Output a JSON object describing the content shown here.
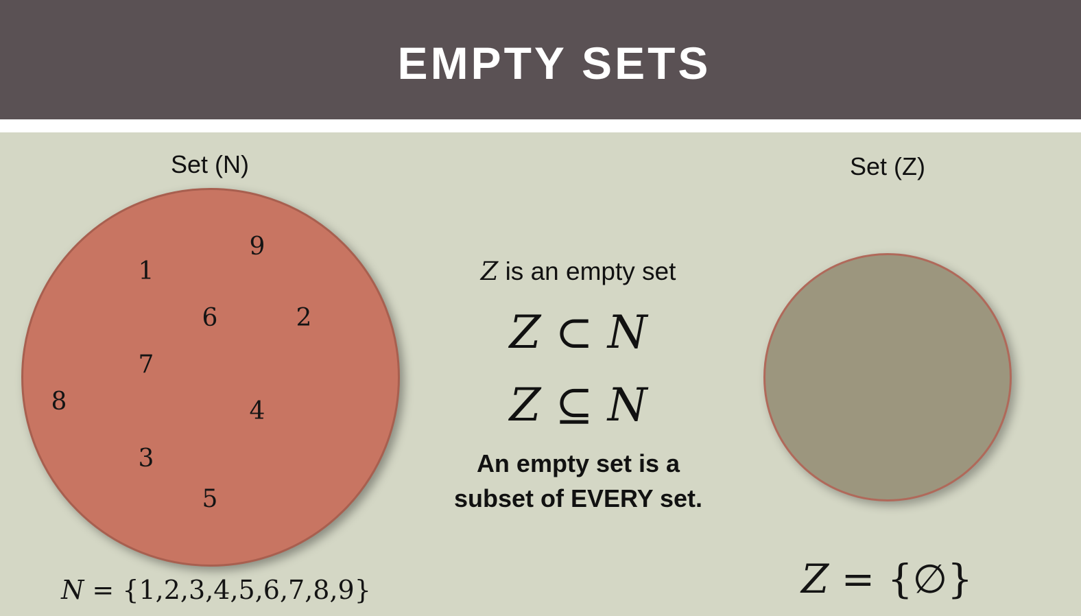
{
  "slide": {
    "title": "EMPTY SETS"
  },
  "set_n": {
    "label": "Set (N)",
    "elements": [
      "9",
      "1",
      "6",
      "2",
      "7",
      "8",
      "4",
      "3",
      "5"
    ],
    "notation_var": "N",
    "notation_rest": " = {1,2,3,4,5,6,7,8,9}",
    "fill_color": "#c87562"
  },
  "set_z": {
    "label": "Set (Z)",
    "notation_var": "Z",
    "notation_rest": " = {∅}",
    "fill_color": "#9c967e"
  },
  "middle": {
    "statement_var": "Z",
    "statement_rest": " is an empty set",
    "proper_subset": {
      "left": "Z",
      "op": " ⊂ ",
      "right": "N"
    },
    "subset": {
      "left": "Z",
      "op": " ⊆ ",
      "right": "N"
    },
    "conclusion_line1": "An empty set is a",
    "conclusion_line2": "subset of EVERY set."
  },
  "colors": {
    "title_bar": "#5a5154",
    "background": "#d4d7c5"
  }
}
